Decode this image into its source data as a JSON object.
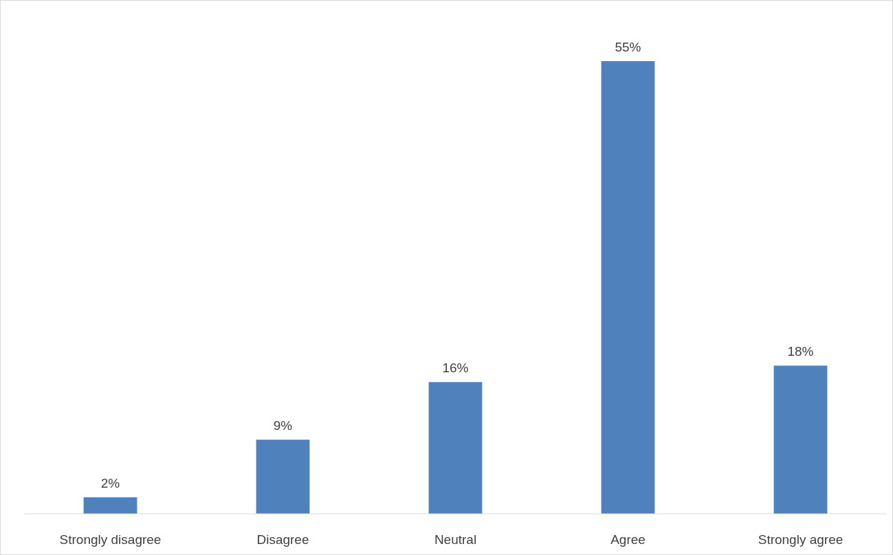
{
  "chart_data": {
    "type": "bar",
    "categories": [
      "Strongly disagree",
      "Disagree",
      "Neutral",
      "Agree",
      "Strongly agree"
    ],
    "values": [
      2,
      9,
      16,
      55,
      18
    ],
    "value_labels": [
      "2%",
      "9%",
      "16%",
      "55%",
      "18%"
    ],
    "color": "#4f81bd"
  }
}
